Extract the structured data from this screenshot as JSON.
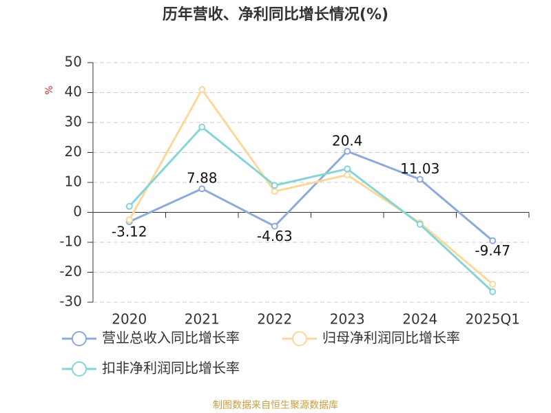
{
  "chart_data": {
    "type": "line",
    "title": "历年营收、净利同比增长情况(%)",
    "y_label": "%",
    "categories": [
      "2020",
      "2021",
      "2022",
      "2023",
      "2024",
      "2025Q1"
    ],
    "series": [
      {
        "name": "营业总收入同比增长率",
        "color": "#8eaadb",
        "values": [
          -3.12,
          7.88,
          -4.63,
          20.4,
          11.03,
          -9.47
        ],
        "data_labels": true
      },
      {
        "name": "归母净利润同比增长率",
        "color": "#fbd89a",
        "values": [
          -2.5,
          41,
          7,
          12.5,
          -3.5,
          -24
        ]
      },
      {
        "name": "扣非净利润同比增长率",
        "color": "#86d4d6",
        "values": [
          2,
          28.5,
          9,
          14.5,
          -4,
          -26.5
        ]
      }
    ],
    "ylim": [
      -30,
      50
    ],
    "yticks": [
      -30,
      -20,
      -10,
      0,
      10,
      20,
      30,
      40,
      50
    ],
    "grid": true,
    "source": "制图数据来自恒生聚源数据库"
  }
}
